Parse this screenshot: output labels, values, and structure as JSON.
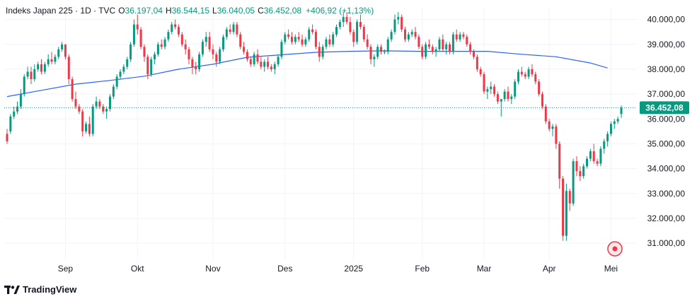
{
  "legend": {
    "symbol": "Indeks Japan 225 · 1D · TVC",
    "o_label": "O",
    "o_value": "36.197,04",
    "h_label": "H",
    "h_value": "36.544,15",
    "l_label": "L",
    "l_value": "36.040,05",
    "c_label": "C",
    "c_value": "36.452,08",
    "change": "+406,92 (+1,13%)"
  },
  "brand": {
    "name": "TradingView",
    "logo_icon": "tradingview-logo-icon"
  },
  "colors": {
    "up": "#089981",
    "down": "#f23645",
    "ma": "#2962ff",
    "last_price_bg": "#089981",
    "grid": "#f0f3fa"
  },
  "chart_data": {
    "type": "candlestick",
    "y_ticks": [
      "40.000,00",
      "39.000,00",
      "38.000,00",
      "37.000,00",
      "36.000,00",
      "35.000,00",
      "34.000,00",
      "33.000,00",
      "32.000,00",
      "31.000,00"
    ],
    "y_tick_values": [
      40000,
      39000,
      38000,
      37000,
      36000,
      35000,
      34000,
      33000,
      32000,
      31000
    ],
    "ylim": [
      30350,
      40500
    ],
    "x_labels": [
      "Sep",
      "Okt",
      "Nov",
      "Des",
      "2025",
      "Feb",
      "Mar",
      "Apr",
      "Mei"
    ],
    "x_label_indices": [
      17,
      38,
      60,
      81,
      101,
      121,
      139,
      158,
      176
    ],
    "last_price_label": "36.452,08",
    "last_price": 36452.08,
    "ohlc": [
      [
        35400,
        35600,
        35000,
        35100
      ],
      [
        35500,
        36200,
        35400,
        36100
      ],
      [
        36100,
        36500,
        36000,
        36300
      ],
      [
        36300,
        36700,
        36200,
        36500
      ],
      [
        36500,
        37200,
        36400,
        37000
      ],
      [
        37000,
        37800,
        36900,
        37700
      ],
      [
        37700,
        38100,
        37600,
        37900
      ],
      [
        37900,
        38100,
        37400,
        37600
      ],
      [
        37600,
        38200,
        37500,
        38000
      ],
      [
        38000,
        38300,
        37900,
        38200
      ],
      [
        38200,
        38400,
        37800,
        37900
      ],
      [
        37900,
        38300,
        37800,
        38200
      ],
      [
        38200,
        38600,
        38100,
        38400
      ],
      [
        38400,
        38700,
        38200,
        38300
      ],
      [
        38300,
        38600,
        38200,
        38500
      ],
      [
        38500,
        38900,
        38400,
        38800
      ],
      [
        38800,
        39100,
        38700,
        39000
      ],
      [
        39000,
        39000,
        38400,
        38500
      ],
      [
        38500,
        38600,
        37400,
        37600
      ],
      [
        37600,
        37700,
        36700,
        36800
      ],
      [
        36800,
        37100,
        36400,
        36500
      ],
      [
        36500,
        36600,
        36200,
        36300
      ],
      [
        36300,
        36400,
        35300,
        35500
      ],
      [
        35500,
        35900,
        35400,
        35800
      ],
      [
        35800,
        36100,
        35300,
        35400
      ],
      [
        35400,
        36600,
        35300,
        36500
      ],
      [
        36500,
        36900,
        36400,
        36700
      ],
      [
        36700,
        36800,
        36400,
        36500
      ],
      [
        36500,
        36600,
        36200,
        36300
      ],
      [
        36300,
        36500,
        36000,
        36400
      ],
      [
        36400,
        37000,
        36300,
        36900
      ],
      [
        36900,
        37400,
        36800,
        37300
      ],
      [
        37300,
        37800,
        37200,
        37700
      ],
      [
        37700,
        38000,
        37600,
        37900
      ],
      [
        37900,
        38200,
        37800,
        38100
      ],
      [
        38100,
        38500,
        38000,
        38400
      ],
      [
        38400,
        39100,
        38300,
        39000
      ],
      [
        39000,
        40000,
        38900,
        39800
      ],
      [
        39800,
        40200,
        39400,
        39600
      ],
      [
        39600,
        39700,
        38800,
        38900
      ],
      [
        38900,
        39000,
        38300,
        38500
      ],
      [
        38500,
        38600,
        37600,
        37800
      ],
      [
        37800,
        38500,
        37700,
        38400
      ],
      [
        38400,
        38700,
        38200,
        38600
      ],
      [
        38600,
        39100,
        38500,
        39000
      ],
      [
        39000,
        39200,
        38800,
        38900
      ],
      [
        38900,
        39300,
        38800,
        39200
      ],
      [
        39200,
        39600,
        39100,
        39500
      ],
      [
        39500,
        39900,
        39400,
        39800
      ],
      [
        39800,
        40000,
        39600,
        39700
      ],
      [
        39700,
        39800,
        39300,
        39400
      ],
      [
        39400,
        39500,
        38900,
        39000
      ],
      [
        39000,
        39200,
        38600,
        38800
      ],
      [
        38800,
        38900,
        38200,
        38400
      ],
      [
        38400,
        38500,
        37800,
        38100
      ],
      [
        38100,
        38300,
        37800,
        38000
      ],
      [
        38000,
        38700,
        37900,
        38600
      ],
      [
        38600,
        39200,
        38500,
        39100
      ],
      [
        39100,
        39500,
        38900,
        39300
      ],
      [
        39300,
        39500,
        38700,
        38800
      ],
      [
        38800,
        39000,
        38400,
        38600
      ],
      [
        38600,
        38700,
        38100,
        38300
      ],
      [
        38300,
        38900,
        38200,
        38800
      ],
      [
        38800,
        39400,
        38700,
        39300
      ],
      [
        39300,
        39700,
        39200,
        39600
      ],
      [
        39600,
        39800,
        39400,
        39500
      ],
      [
        39500,
        39900,
        39400,
        39800
      ],
      [
        39800,
        39900,
        39300,
        39400
      ],
      [
        39400,
        39500,
        38800,
        38900
      ],
      [
        38900,
        39100,
        38600,
        38700
      ],
      [
        38700,
        38800,
        38300,
        38400
      ],
      [
        38400,
        38500,
        38100,
        38200
      ],
      [
        38200,
        38700,
        38100,
        38600
      ],
      [
        38600,
        38800,
        38200,
        38300
      ],
      [
        38300,
        38500,
        38000,
        38100
      ],
      [
        38100,
        38400,
        37900,
        38300
      ],
      [
        38300,
        38500,
        38000,
        38100
      ],
      [
        38100,
        38200,
        37900,
        38000
      ],
      [
        38000,
        38300,
        37800,
        38200
      ],
      [
        38200,
        38600,
        38100,
        38500
      ],
      [
        38500,
        39200,
        38400,
        39100
      ],
      [
        39100,
        39500,
        39000,
        39400
      ],
      [
        39400,
        39600,
        39200,
        39300
      ],
      [
        39300,
        39500,
        39000,
        39100
      ],
      [
        39100,
        39400,
        39000,
        39300
      ],
      [
        39300,
        39500,
        39100,
        39200
      ],
      [
        39200,
        39400,
        38900,
        39000
      ],
      [
        39000,
        39300,
        38900,
        39200
      ],
      [
        39200,
        39700,
        39100,
        39600
      ],
      [
        39600,
        39800,
        39400,
        39500
      ],
      [
        39500,
        39600,
        38800,
        38900
      ],
      [
        38900,
        39100,
        38300,
        38500
      ],
      [
        38500,
        39000,
        38400,
        38900
      ],
      [
        38900,
        39300,
        38800,
        39200
      ],
      [
        39200,
        39400,
        38900,
        39000
      ],
      [
        39000,
        39500,
        38900,
        39400
      ],
      [
        39400,
        39800,
        39300,
        39700
      ],
      [
        39700,
        40000,
        39600,
        39900
      ],
      [
        39900,
        40300,
        39700,
        40100
      ],
      [
        40100,
        40300,
        39800,
        39900
      ],
      [
        39900,
        40100,
        39400,
        39500
      ],
      [
        39500,
        39600,
        38900,
        39100
      ],
      [
        39100,
        40000,
        39000,
        39900
      ],
      [
        39900,
        40200,
        39600,
        39700
      ],
      [
        39700,
        39800,
        39100,
        39200
      ],
      [
        39200,
        39400,
        38800,
        38900
      ],
      [
        38900,
        39000,
        38200,
        38400
      ],
      [
        38400,
        38600,
        38100,
        38500
      ],
      [
        38500,
        39000,
        38400,
        38900
      ],
      [
        38900,
        39000,
        38600,
        38700
      ],
      [
        38700,
        38800,
        38600,
        38700
      ],
      [
        38700,
        39300,
        38600,
        39200
      ],
      [
        39200,
        39600,
        39100,
        39500
      ],
      [
        39500,
        40200,
        39400,
        40000
      ],
      [
        40000,
        40300,
        39800,
        40100
      ],
      [
        40100,
        40200,
        39500,
        39600
      ],
      [
        39600,
        39700,
        39100,
        39200
      ],
      [
        39200,
        39500,
        39100,
        39400
      ],
      [
        39400,
        39600,
        39300,
        39500
      ],
      [
        39500,
        39700,
        39200,
        39300
      ],
      [
        39300,
        39400,
        38800,
        38900
      ],
      [
        38900,
        39000,
        38400,
        38500
      ],
      [
        38500,
        39100,
        38400,
        39000
      ],
      [
        39000,
        39200,
        38800,
        38900
      ],
      [
        38900,
        39000,
        38600,
        38700
      ],
      [
        38700,
        38900,
        38500,
        38800
      ],
      [
        38800,
        39300,
        38700,
        39200
      ],
      [
        39200,
        39400,
        38700,
        38800
      ],
      [
        38800,
        39100,
        38600,
        39000
      ],
      [
        39000,
        39100,
        38600,
        38700
      ],
      [
        38700,
        39500,
        38600,
        39400
      ],
      [
        39400,
        39600,
        39100,
        39200
      ],
      [
        39200,
        39500,
        39100,
        39400
      ],
      [
        39400,
        39500,
        39200,
        39300
      ],
      [
        39300,
        39400,
        38900,
        39000
      ],
      [
        39000,
        39100,
        38600,
        38700
      ],
      [
        38700,
        38800,
        38400,
        38500
      ],
      [
        38500,
        38600,
        37900,
        38000
      ],
      [
        38000,
        38100,
        37700,
        37800
      ],
      [
        37800,
        37900,
        37000,
        37100
      ],
      [
        37100,
        37300,
        36800,
        37200
      ],
      [
        37200,
        37500,
        37000,
        37300
      ],
      [
        37300,
        37400,
        36900,
        37000
      ],
      [
        37000,
        37100,
        36600,
        36700
      ],
      [
        36700,
        36800,
        36100,
        36800
      ],
      [
        36800,
        37200,
        36700,
        37100
      ],
      [
        37100,
        37300,
        36700,
        36800
      ],
      [
        36800,
        37000,
        36600,
        36900
      ],
      [
        36900,
        37600,
        36800,
        37500
      ],
      [
        37500,
        38000,
        37400,
        37900
      ],
      [
        37900,
        38100,
        37700,
        37800
      ],
      [
        37800,
        37900,
        37600,
        37700
      ],
      [
        37700,
        38100,
        37600,
        38000
      ],
      [
        38000,
        38200,
        37700,
        37800
      ],
      [
        37800,
        37900,
        37400,
        37500
      ],
      [
        37500,
        37600,
        36900,
        37000
      ],
      [
        37000,
        37100,
        36400,
        36500
      ],
      [
        36500,
        36600,
        35800,
        35900
      ],
      [
        35900,
        36000,
        35500,
        35600
      ],
      [
        35600,
        35800,
        35300,
        35700
      ],
      [
        35700,
        35800,
        34800,
        35000
      ],
      [
        35000,
        35100,
        33200,
        33600
      ],
      [
        33600,
        33700,
        31100,
        31300
      ],
      [
        31300,
        33400,
        31100,
        33100
      ],
      [
        33100,
        33200,
        32300,
        32600
      ],
      [
        32600,
        34400,
        32500,
        34300
      ],
      [
        34300,
        34500,
        33700,
        33900
      ],
      [
        33900,
        34100,
        33500,
        33700
      ],
      [
        33700,
        34200,
        33600,
        34100
      ],
      [
        34100,
        34500,
        34000,
        34400
      ],
      [
        34400,
        34800,
        34300,
        34700
      ],
      [
        34700,
        35000,
        34200,
        34300
      ],
      [
        34300,
        34400,
        34100,
        34200
      ],
      [
        34200,
        34900,
        34100,
        34800
      ],
      [
        34800,
        35200,
        34600,
        35100
      ],
      [
        35100,
        35500,
        34900,
        35400
      ],
      [
        35400,
        35900,
        35300,
        35800
      ],
      [
        35800,
        36000,
        35600,
        35900
      ],
      [
        35900,
        36100,
        35800,
        36000
      ],
      [
        36197.04,
        36544.15,
        36040.05,
        36452.08
      ]
    ],
    "ma": [
      [
        0,
        36900
      ],
      [
        10,
        37150
      ],
      [
        20,
        37400
      ],
      [
        30,
        37550
      ],
      [
        40,
        37720
      ],
      [
        50,
        38000
      ],
      [
        60,
        38200
      ],
      [
        70,
        38480
      ],
      [
        80,
        38580
      ],
      [
        90,
        38680
      ],
      [
        100,
        38720
      ],
      [
        110,
        38740
      ],
      [
        120,
        38720
      ],
      [
        130,
        38720
      ],
      [
        140,
        38720
      ],
      [
        150,
        38600
      ],
      [
        160,
        38500
      ],
      [
        170,
        38250
      ],
      [
        175,
        38050
      ]
    ]
  }
}
